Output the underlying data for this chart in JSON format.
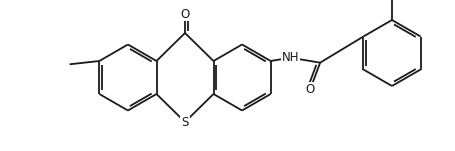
{
  "bg_color": "#ffffff",
  "line_color": "#1a1a1a",
  "line_width": 1.3,
  "figsize": [
    4.55,
    1.51
  ],
  "dpi": 100,
  "label_S": "S",
  "label_O1": "O",
  "label_NH": "NH",
  "label_O2": "O",
  "label_fs": 8.5
}
